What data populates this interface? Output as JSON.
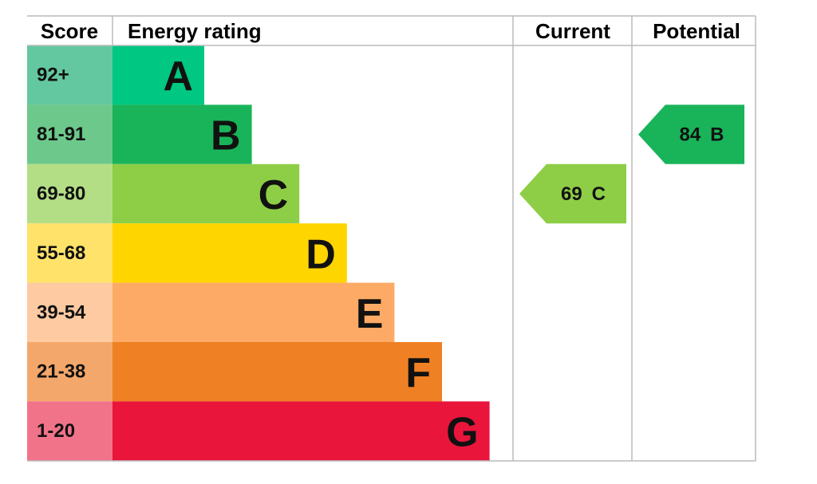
{
  "header": {
    "score": "Score",
    "energy_rating": "Energy rating",
    "current": "Current",
    "potential": "Potential"
  },
  "bands": [
    {
      "score": "92+",
      "rating": "A",
      "color": "#00c781",
      "score_color": "#63c8a0"
    },
    {
      "score": "81-91",
      "rating": "B",
      "color": "#19b459",
      "score_color": "#6cc98b"
    },
    {
      "score": "69-80",
      "rating": "C",
      "color": "#8dce46",
      "score_color": "#b4de86"
    },
    {
      "score": "55-68",
      "rating": "D",
      "color": "#ffd500",
      "score_color": "#ffe26a"
    },
    {
      "score": "39-54",
      "rating": "E",
      "color": "#fcaa65",
      "score_color": "#fdcaa2"
    },
    {
      "score": "21-38",
      "rating": "F",
      "color": "#ef8023",
      "score_color": "#f4a76a"
    },
    {
      "score": "1-20",
      "rating": "G",
      "color": "#e9153b",
      "score_color": "#f1738a"
    }
  ],
  "current": {
    "value": 69,
    "rating": "C"
  },
  "potential": {
    "value": 84,
    "rating": "B"
  }
}
